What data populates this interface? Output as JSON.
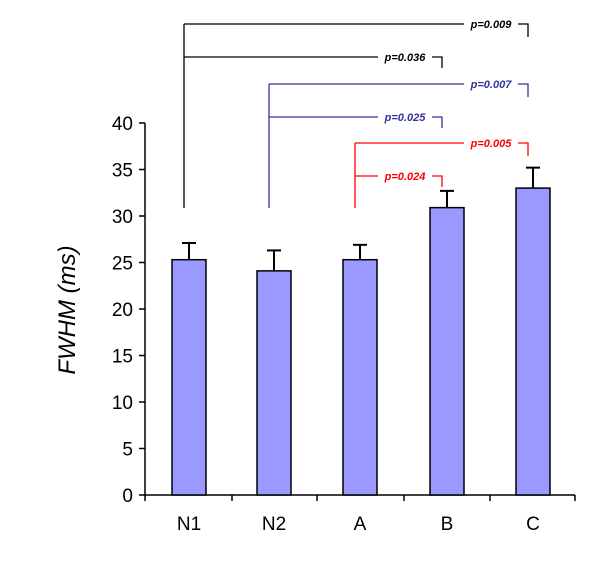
{
  "chart_data": {
    "type": "bar",
    "title": "",
    "xlabel": "",
    "ylabel": "FWHM (ms)",
    "ylim": [
      0,
      40
    ],
    "yticks": [
      0,
      5,
      10,
      15,
      20,
      25,
      30,
      35,
      40
    ],
    "grid": false,
    "categories": [
      "N1",
      "N2",
      "A",
      "B",
      "C"
    ],
    "values": [
      25.3,
      24.1,
      25.3,
      30.9,
      33.0
    ],
    "error_upper": [
      1.8,
      2.2,
      1.6,
      1.8,
      2.2
    ],
    "bar_color": "#9999ff",
    "comparisons": [
      {
        "from": "N1",
        "to": "C",
        "label": "p=0.009",
        "color": "#000000"
      },
      {
        "from": "N1",
        "to": "B",
        "label": "p=0.036",
        "color": "#000000"
      },
      {
        "from": "N2",
        "to": "C",
        "label": "p=0.007",
        "color": "#333399"
      },
      {
        "from": "N2",
        "to": "B",
        "label": "p=0.025",
        "color": "#333399"
      },
      {
        "from": "A",
        "to": "C",
        "label": "p=0.005",
        "color": "#ff0000"
      },
      {
        "from": "A",
        "to": "B",
        "label": "p=0.024",
        "color": "#ff0000"
      }
    ]
  }
}
